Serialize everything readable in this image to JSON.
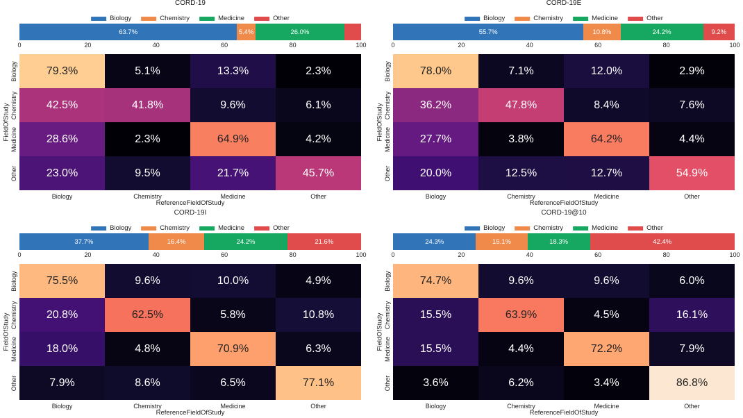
{
  "chart_data": [
    {
      "type": "heatmap",
      "title": "CORD-19",
      "legend": [
        "Biology",
        "Chemistry",
        "Medicine",
        "Other"
      ],
      "colors": [
        "#3274b8",
        "#f08a4b",
        "#16a861",
        "#e04b4b"
      ],
      "bar_values": [
        63.7,
        5.4,
        26.0,
        4.9
      ],
      "bar_labels": [
        "63.7%",
        "5.4%",
        "26.0%",
        ""
      ],
      "bar_ticks": [
        "0",
        "20",
        "40",
        "60",
        "80",
        "100"
      ],
      "rows": [
        "Biology",
        "Chemistry",
        "Medicine",
        "Other"
      ],
      "cols": [
        "Biology",
        "Chemistry",
        "Medicine",
        "Other"
      ],
      "xlabel": "ReferenceFieldOfStudy",
      "ylabel": "FieldOfStudy",
      "values": [
        [
          79.3,
          5.1,
          13.3,
          2.3
        ],
        [
          42.5,
          41.8,
          9.6,
          6.1
        ],
        [
          28.6,
          2.3,
          64.9,
          4.2
        ],
        [
          23.0,
          9.5,
          21.7,
          45.7
        ]
      ],
      "labels": [
        [
          "79.3%",
          "5.1%",
          "13.3%",
          "2.3%"
        ],
        [
          "42.5%",
          "41.8%",
          "9.6%",
          "6.1%"
        ],
        [
          "28.6%",
          "2.3%",
          "64.9%",
          "4.2%"
        ],
        [
          "23.0%",
          "9.5%",
          "21.7%",
          "45.7%"
        ]
      ]
    },
    {
      "type": "heatmap",
      "title": "CORD-19E",
      "legend": [
        "Biology",
        "Chemistry",
        "Medicine",
        "Other"
      ],
      "colors": [
        "#3274b8",
        "#f08a4b",
        "#16a861",
        "#e04b4b"
      ],
      "bar_values": [
        55.7,
        10.8,
        24.2,
        9.2
      ],
      "bar_labels": [
        "55.7%",
        "10.8%",
        "24.2%",
        "9.2%"
      ],
      "bar_ticks": [
        "0",
        "20",
        "40",
        "60",
        "80",
        "100"
      ],
      "rows": [
        "Biology",
        "Chemistry",
        "Medicine",
        "Other"
      ],
      "cols": [
        "Biology",
        "Chemistry",
        "Medicine",
        "Other"
      ],
      "xlabel": "ReferenceFieldOfStudy",
      "ylabel": "FieldOfStudy",
      "values": [
        [
          78.0,
          7.1,
          12.0,
          2.9
        ],
        [
          36.2,
          47.8,
          8.4,
          7.6
        ],
        [
          27.7,
          3.8,
          64.2,
          4.4
        ],
        [
          20.0,
          12.5,
          12.7,
          54.9
        ]
      ],
      "labels": [
        [
          "78.0%",
          "7.1%",
          "12.0%",
          "2.9%"
        ],
        [
          "36.2%",
          "47.8%",
          "8.4%",
          "7.6%"
        ],
        [
          "27.7%",
          "3.8%",
          "64.2%",
          "4.4%"
        ],
        [
          "20.0%",
          "12.5%",
          "12.7%",
          "54.9%"
        ]
      ]
    },
    {
      "type": "heatmap",
      "title": "CORD-19I",
      "legend": [
        "Biology",
        "Chemistry",
        "Medicine",
        "Other"
      ],
      "colors": [
        "#3274b8",
        "#f08a4b",
        "#16a861",
        "#e04b4b"
      ],
      "bar_values": [
        37.7,
        16.4,
        24.2,
        21.6
      ],
      "bar_labels": [
        "37.7%",
        "16.4%",
        "24.2%",
        "21.6%"
      ],
      "bar_ticks": [
        "0",
        "20",
        "40",
        "60",
        "80",
        "100"
      ],
      "rows": [
        "Biology",
        "Chemistry",
        "Medicine",
        "Other"
      ],
      "cols": [
        "Biology",
        "Chemistry",
        "Medicine",
        "Other"
      ],
      "xlabel": "ReferenceFieldOfStudy",
      "ylabel": "FieldOfStudy",
      "values": [
        [
          75.5,
          9.6,
          10.0,
          4.9
        ],
        [
          20.8,
          62.5,
          5.8,
          10.8
        ],
        [
          18.0,
          4.8,
          70.9,
          6.3
        ],
        [
          7.9,
          8.6,
          6.5,
          77.1
        ]
      ],
      "labels": [
        [
          "75.5%",
          "9.6%",
          "10.0%",
          "4.9%"
        ],
        [
          "20.8%",
          "62.5%",
          "5.8%",
          "10.8%"
        ],
        [
          "18.0%",
          "4.8%",
          "70.9%",
          "6.3%"
        ],
        [
          "7.9%",
          "8.6%",
          "6.5%",
          "77.1%"
        ]
      ]
    },
    {
      "type": "heatmap",
      "title": "CORD-19@10",
      "legend": [
        "Biology",
        "Chemistry",
        "Medicine",
        "Other"
      ],
      "colors": [
        "#3274b8",
        "#f08a4b",
        "#16a861",
        "#e04b4b"
      ],
      "bar_values": [
        24.3,
        15.1,
        18.3,
        42.4
      ],
      "bar_labels": [
        "24.3%",
        "15.1%",
        "18.3%",
        "42.4%"
      ],
      "bar_ticks": [
        "0",
        "20",
        "40",
        "60",
        "80",
        "100"
      ],
      "rows": [
        "Biology",
        "Chemistry",
        "Medicine",
        "Other"
      ],
      "cols": [
        "Biology",
        "Chemistry",
        "Medicine",
        "Other"
      ],
      "xlabel": "ReferenceFieldOfStudy",
      "ylabel": "FieldOfStudy",
      "values": [
        [
          74.7,
          9.6,
          9.6,
          6.0
        ],
        [
          15.5,
          63.9,
          4.5,
          16.1
        ],
        [
          15.5,
          4.4,
          72.2,
          7.9
        ],
        [
          3.6,
          6.2,
          3.4,
          86.8
        ]
      ],
      "labels": [
        [
          "74.7%",
          "9.6%",
          "9.6%",
          "6.0%"
        ],
        [
          "15.5%",
          "63.9%",
          "4.5%",
          "16.1%"
        ],
        [
          "15.5%",
          "4.4%",
          "72.2%",
          "7.9%"
        ],
        [
          "3.6%",
          "6.2%",
          "3.4%",
          "86.8%"
        ]
      ]
    }
  ]
}
